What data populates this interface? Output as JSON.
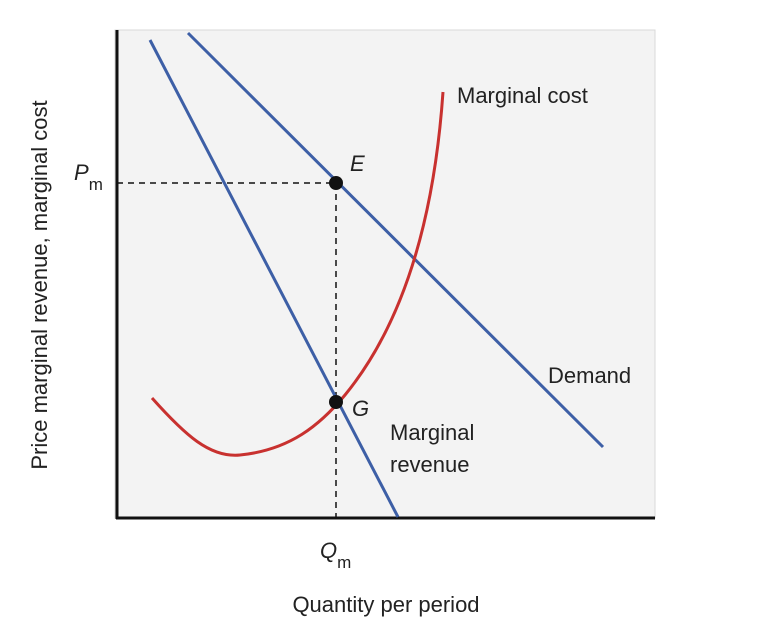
{
  "axes": {
    "y_label": "Price marginal revenue, marginal cost",
    "x_label": "Quantity per period"
  },
  "curves": {
    "marginal_cost": "Marginal cost",
    "demand": "Demand",
    "marginal_revenue": [
      "Marginal",
      "revenue"
    ]
  },
  "points": {
    "e": "E",
    "g": "G"
  },
  "ticks": {
    "price": {
      "symbol": "P",
      "subscript": "m"
    },
    "quantity": {
      "symbol": "Q",
      "subscript": "m"
    }
  }
}
